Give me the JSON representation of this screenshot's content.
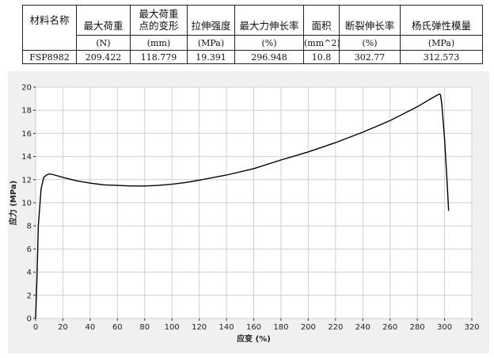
{
  "table": {
    "headers": [
      {
        "label": "材料名称",
        "unit": ""
      },
      {
        "label": "最大荷重",
        "unit": "(N)"
      },
      {
        "label": "最大荷重\n点的变形",
        "unit": "(mm)"
      },
      {
        "label": "拉伸强度",
        "unit": "(MPa)"
      },
      {
        "label": "最大力伸长率",
        "unit": "(%)"
      },
      {
        "label": "面积",
        "unit": "(mm^2)"
      },
      {
        "label": "断裂伸长率",
        "unit": "(%)"
      },
      {
        "label": "杨氏弹性模量",
        "unit": "(MPa)"
      }
    ],
    "row": [
      "FSP8982",
      "209.422",
      "118.779",
      "19.391",
      "296.948",
      "10.8",
      "302.77",
      "312.573"
    ]
  },
  "chart_data": {
    "type": "line",
    "title": "",
    "xlabel": "应变 (%)",
    "ylabel": "应力 (MPa)",
    "xlim": [
      0,
      320
    ],
    "ylim": [
      0,
      20
    ],
    "xticks": [
      0,
      20,
      40,
      60,
      80,
      100,
      120,
      140,
      160,
      180,
      200,
      220,
      240,
      260,
      280,
      300,
      320
    ],
    "yticks": [
      0,
      2,
      4,
      6,
      8,
      10,
      12,
      14,
      16,
      18,
      20
    ],
    "grid": true,
    "legend": "none",
    "line_color": "#000000",
    "series": [
      {
        "x": [
          0,
          1,
          2,
          4,
          6,
          8,
          10,
          14,
          20,
          30,
          40,
          50,
          60,
          70,
          80,
          90,
          100,
          110,
          120,
          140,
          160,
          180,
          200,
          220,
          240,
          260,
          280,
          290,
          296,
          297,
          298,
          300,
          302,
          303
        ],
        "y": [
          0,
          3.5,
          8,
          11.2,
          12.2,
          12.4,
          12.5,
          12.4,
          12.2,
          11.9,
          11.7,
          11.55,
          11.5,
          11.45,
          11.45,
          11.5,
          11.6,
          11.75,
          11.95,
          12.4,
          12.95,
          13.7,
          14.4,
          15.2,
          16.1,
          17.1,
          18.3,
          19.0,
          19.4,
          19.35,
          18.5,
          15.5,
          11.5,
          9.3
        ]
      }
    ]
  }
}
